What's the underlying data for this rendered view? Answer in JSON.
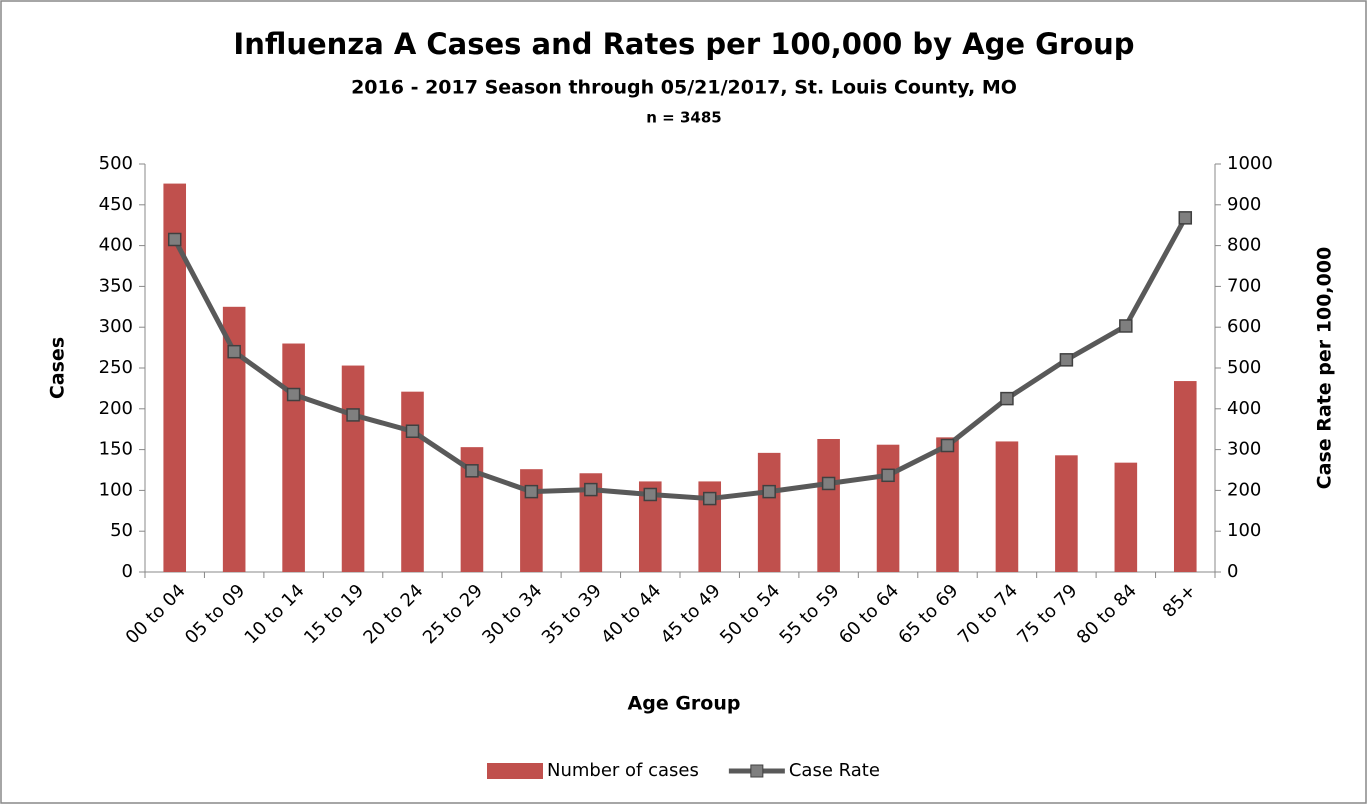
{
  "chart_data": {
    "type": "bar",
    "title": "Influenza A Cases and Rates per 100,000 by Age Group",
    "subtitle": "2016 - 2017 Season through 05/21/2017, St. Louis County, MO",
    "note": "n = 3485",
    "x_label": "Age Group",
    "y_label": "Cases",
    "y2_label": "Case Rate per 100,000",
    "categories": [
      "00 to 04",
      "05 to 09",
      "10 to 14",
      "15 to 19",
      "20 to 24",
      "25 to 29",
      "30 to 34",
      "35 to 39",
      "40 to 44",
      "45 to 49",
      "50 to 54",
      "55 to 59",
      "60 to 64",
      "65 to 69",
      "70 to 74",
      "75 to 79",
      "80 to 84",
      "85+"
    ],
    "series": [
      {
        "name": "Number of cases",
        "type": "bar",
        "color": "#c0504d",
        "values": [
          476,
          325,
          280,
          253,
          221,
          153,
          126,
          121,
          111,
          111,
          146,
          163,
          156,
          165,
          160,
          143,
          134,
          234
        ]
      },
      {
        "name": "Case Rate",
        "type": "line",
        "axis": "y2",
        "color": "#595959",
        "values": [
          815,
          540,
          435,
          385,
          345,
          248,
          197,
          202,
          190,
          180,
          197,
          217,
          237,
          310,
          425,
          520,
          603,
          868
        ]
      }
    ],
    "ylim": [
      0,
      500
    ],
    "yticks": [
      0,
      50,
      100,
      150,
      200,
      250,
      300,
      350,
      400,
      450,
      500
    ],
    "y2lim": [
      0,
      1000
    ],
    "y2ticks": [
      0,
      100,
      200,
      300,
      400,
      500,
      600,
      700,
      800,
      900,
      1000
    ],
    "legend": "bottom"
  }
}
